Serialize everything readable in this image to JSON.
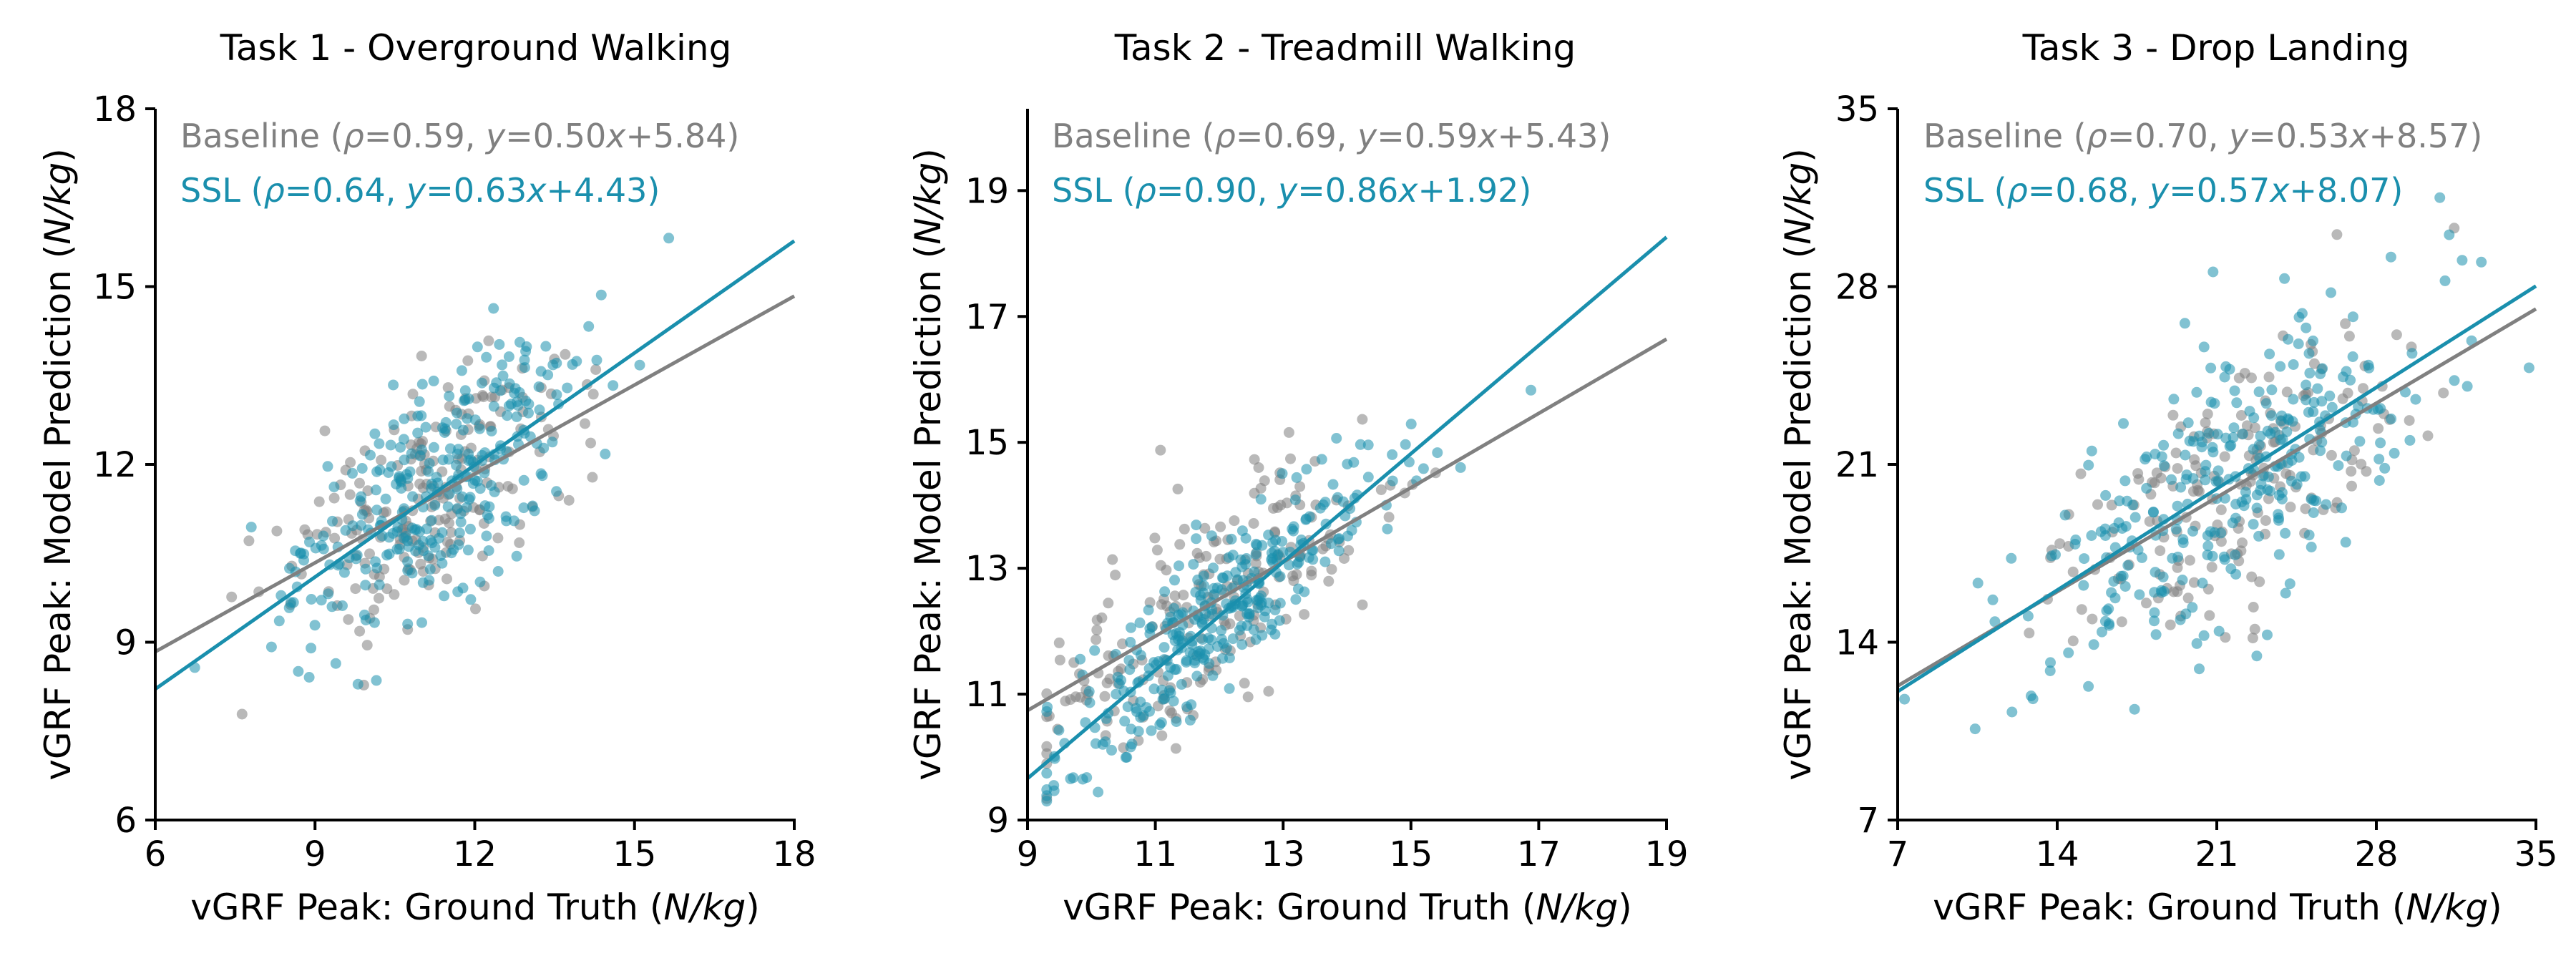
{
  "figure": {
    "background": "#ffffff",
    "baseline_color": "#808080",
    "ssl_color": "#1a8fad",
    "marker_alpha": 0.55
  },
  "chart_data": [
    {
      "type": "scatter",
      "title": "Task 1 - Overground Walking",
      "xlabel": "vGRF Peak: Ground Truth",
      "ylabel": "vGRF Peak: Model Prediction",
      "unit": "N/kg",
      "xlim": [
        6,
        18
      ],
      "ylim": [
        6,
        18
      ],
      "xticks": [
        6,
        9,
        12,
        15,
        18
      ],
      "yticks": [
        6,
        9,
        12,
        15,
        18
      ],
      "legend_position": "top-left",
      "cloud": {
        "center_x": 11.2,
        "center_y": 11.4,
        "sd_x": 1.35,
        "n_baseline": 200,
        "n_ssl": 300
      },
      "series": [
        {
          "name": "Baseline",
          "color": "#808080",
          "rho": 0.59,
          "slope": 0.5,
          "intercept": 5.84,
          "legend_parts": [
            "Baseline (",
            "ρ",
            "=0.59, ",
            "y",
            "=0.50",
            "x",
            "+5.84)"
          ]
        },
        {
          "name": "SSL",
          "color": "#1a8fad",
          "rho": 0.64,
          "slope": 0.63,
          "intercept": 4.43,
          "legend_parts": [
            "SSL (",
            "ρ",
            "=0.64, ",
            "y",
            "=0.63",
            "x",
            "+4.43)"
          ]
        }
      ]
    },
    {
      "type": "scatter",
      "title": "Task 2 - Treadmill Walking",
      "xlabel": "vGRF Peak: Ground Truth",
      "ylabel": "vGRF Peak: Model Prediction",
      "unit": "N/kg",
      "xlim": [
        9,
        19
      ],
      "ylim": [
        9,
        20.3
      ],
      "xticks": [
        9,
        11,
        13,
        15,
        17,
        19
      ],
      "yticks": [
        9,
        11,
        13,
        15,
        17,
        19
      ],
      "legend_position": "top-left",
      "cloud": {
        "center_x": 11.9,
        "center_y": 12.1,
        "sd_x": 1.35,
        "n_baseline": 200,
        "n_ssl": 320
      },
      "series": [
        {
          "name": "Baseline",
          "color": "#808080",
          "rho": 0.69,
          "slope": 0.59,
          "intercept": 5.43,
          "legend_parts": [
            "Baseline (",
            "ρ",
            "=0.69, ",
            "y",
            "=0.59",
            "x",
            "+5.43)"
          ]
        },
        {
          "name": "SSL",
          "color": "#1a8fad",
          "rho": 0.9,
          "slope": 0.86,
          "intercept": 1.92,
          "legend_parts": [
            "SSL (",
            "ρ",
            "=0.90, ",
            "y",
            "=0.86",
            "x",
            "+1.92)"
          ]
        }
      ]
    },
    {
      "type": "scatter",
      "title": "Task 3 - Drop Landing",
      "xlabel": "vGRF Peak: Ground Truth",
      "ylabel": "vGRF Peak: Model Prediction",
      "unit": "N/kg",
      "xlim": [
        7,
        35
      ],
      "ylim": [
        7,
        35
      ],
      "xticks": [
        7,
        14,
        21,
        28,
        35
      ],
      "yticks": [
        7,
        14,
        21,
        28,
        35
      ],
      "legend_position": "top-left",
      "cloud": {
        "center_x": 21.5,
        "center_y": 20.4,
        "sd_x": 4.3,
        "n_baseline": 180,
        "n_ssl": 300
      },
      "series": [
        {
          "name": "Baseline",
          "color": "#808080",
          "rho": 0.7,
          "slope": 0.53,
          "intercept": 8.57,
          "legend_parts": [
            "Baseline (",
            "ρ",
            "=0.70, ",
            "y",
            "=0.53",
            "x",
            "+8.57)"
          ]
        },
        {
          "name": "SSL",
          "color": "#1a8fad",
          "rho": 0.68,
          "slope": 0.57,
          "intercept": 8.07,
          "legend_parts": [
            "SSL (",
            "ρ",
            "=0.68, ",
            "y",
            "=0.57",
            "x",
            "+8.07)"
          ]
        }
      ]
    }
  ]
}
